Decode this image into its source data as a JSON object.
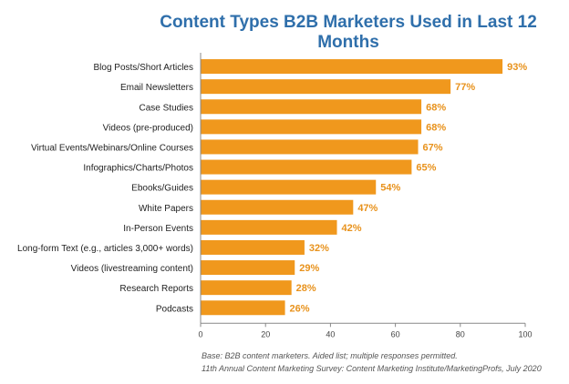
{
  "chart_data": {
    "type": "bar",
    "orientation": "horizontal",
    "title": "Content Types B2B Marketers Used in Last 12 Months",
    "categories": [
      "Blog Posts/Short Articles",
      "Email Newsletters",
      "Case Studies",
      "Videos (pre-produced)",
      "Virtual Events/Webinars/Online Courses",
      "Infographics/Charts/Photos",
      "Ebooks/Guides",
      "White Papers",
      "In-Person Events",
      "Long-form Text (e.g., articles 3,000+ words)",
      "Videos (livestreaming content)",
      "Research Reports",
      "Podcasts"
    ],
    "values": [
      93,
      77,
      68,
      68,
      67,
      65,
      54,
      47,
      42,
      32,
      29,
      28,
      26
    ],
    "value_labels": [
      "93%",
      "77%",
      "68%",
      "68%",
      "67%",
      "65%",
      "54%",
      "47%",
      "42%",
      "32%",
      "29%",
      "28%",
      "26%"
    ],
    "xlim": [
      0,
      100
    ],
    "xticks": [
      "0",
      "20",
      "40",
      "60",
      "80",
      "100"
    ],
    "grid": false,
    "colors": {
      "bar": "#f0981d",
      "value_label": "#e8921c",
      "title": "#2f6fab"
    },
    "footnotes": [
      "Base: B2B content marketers. Aided list; multiple responses permitted.",
      "11th Annual Content Marketing Survey: Content Marketing Institute/MarketingProfs, July 2020"
    ]
  }
}
